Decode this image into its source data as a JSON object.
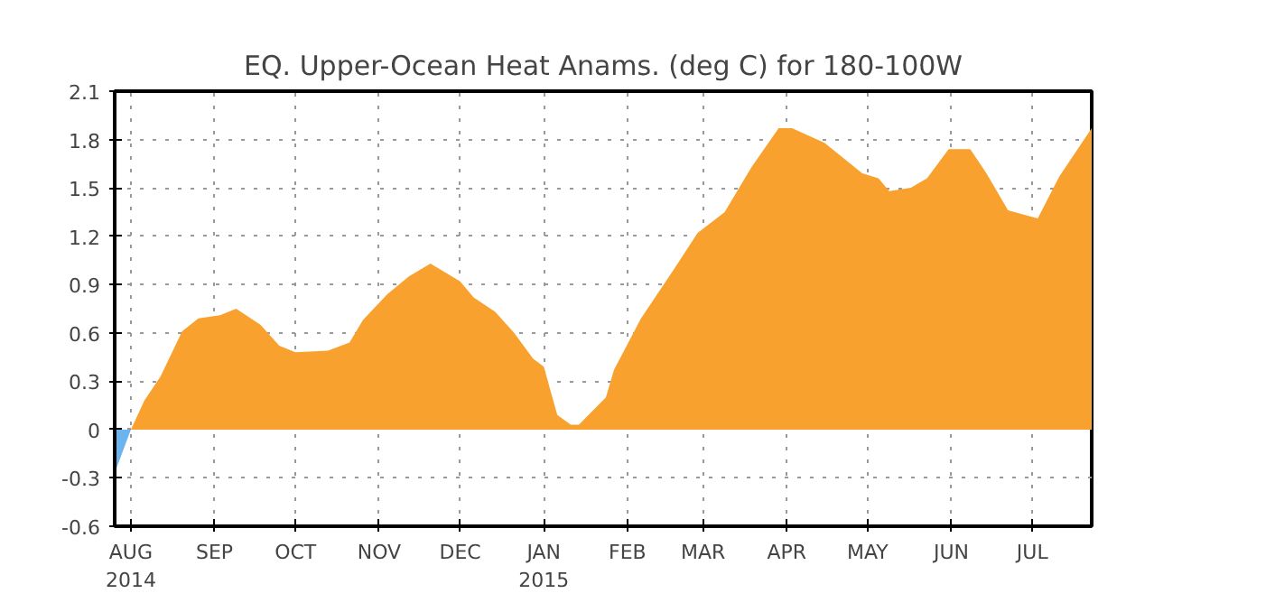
{
  "chart_data": {
    "type": "area",
    "title": "EQ. Upper-Ocean Heat Anams. (deg C) for 180-100W",
    "series": [
      {
        "color": "#6cb4f0",
        "x": [
          "2014-07-26",
          "2014-08-01"
        ],
        "values": [
          -0.27,
          0
        ]
      },
      {
        "color": "#f9a12e",
        "x": [
          "2014-08-01",
          "2014-08-06",
          "2014-08-12",
          "2014-08-20",
          "2014-08-26",
          "2014-09-03",
          "2014-09-09",
          "2014-09-18",
          "2014-09-25",
          "2014-10-01",
          "2014-10-13",
          "2014-10-21",
          "2014-10-26",
          "2014-11-04",
          "2014-11-12",
          "2014-11-20",
          "2014-12-01",
          "2014-12-06",
          "2014-12-14",
          "2014-12-21",
          "2014-12-28",
          "2015-01-01",
          "2015-01-06",
          "2015-01-11",
          "2015-01-14",
          "2015-01-24",
          "2015-01-27",
          "2015-02-06",
          "2015-02-18",
          "2015-02-27",
          "2015-03-09",
          "2015-03-19",
          "2015-03-29",
          "2015-04-03",
          "2015-04-15",
          "2015-04-29",
          "2015-05-05",
          "2015-05-09",
          "2015-05-17",
          "2015-05-23",
          "2015-05-31",
          "2015-06-08",
          "2015-06-14",
          "2015-06-22",
          "2015-07-03",
          "2015-07-11",
          "2015-07-23"
        ],
        "values": [
          0,
          0.18,
          0.33,
          0.61,
          0.69,
          0.71,
          0.75,
          0.65,
          0.52,
          0.48,
          0.49,
          0.54,
          0.68,
          0.84,
          0.95,
          1.03,
          0.92,
          0.82,
          0.73,
          0.6,
          0.44,
          0.39,
          0.09,
          0.03,
          0.03,
          0.2,
          0.37,
          0.69,
          0.99,
          1.22,
          1.35,
          1.63,
          1.87,
          1.87,
          1.78,
          1.59,
          1.56,
          1.48,
          1.5,
          1.56,
          1.74,
          1.74,
          1.59,
          1.36,
          1.31,
          1.57,
          1.87
        ]
      }
    ],
    "xlim": [
      "2014-07-26",
      "2015-07-23"
    ],
    "xticks": [
      {
        "value": "2014-08-01",
        "label": "AUG\n2014"
      },
      {
        "value": "2014-09-01",
        "label": "SEP"
      },
      {
        "value": "2014-10-01",
        "label": "OCT"
      },
      {
        "value": "2014-11-01",
        "label": "NOV"
      },
      {
        "value": "2014-12-01",
        "label": "DEC"
      },
      {
        "value": "2015-01-01",
        "label": "JAN\n2015"
      },
      {
        "value": "2015-02-01",
        "label": "FEB"
      },
      {
        "value": "2015-03-01",
        "label": "MAR"
      },
      {
        "value": "2015-04-01",
        "label": "APR"
      },
      {
        "value": "2015-05-01",
        "label": "MAY"
      },
      {
        "value": "2015-06-01",
        "label": "JUN"
      },
      {
        "value": "2015-07-01",
        "label": "JUL"
      }
    ],
    "ylim": [
      -0.6,
      2.1
    ],
    "yticks": [
      -0.6,
      -0.3,
      0,
      0.3,
      0.6,
      0.9,
      1.2,
      1.5,
      1.8,
      2.1
    ],
    "grid": true
  }
}
